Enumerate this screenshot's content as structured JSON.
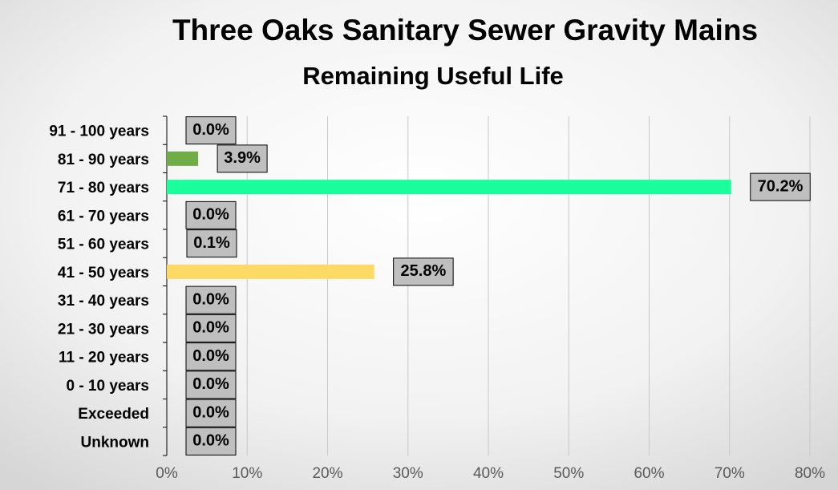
{
  "chart_data": {
    "type": "bar",
    "orientation": "horizontal",
    "title": "Three Oaks Sanitary Sewer Gravity Mains",
    "subtitle": "Remaining Useful Life",
    "categories": [
      "91 - 100 years",
      "81 - 90 years",
      "71 - 80 years",
      "61 - 70 years",
      "51 - 60 years",
      "41 - 50 years",
      "31 - 40 years",
      "21 - 30 years",
      "11 - 20 years",
      "0 - 10 years",
      "Exceeded",
      "Unknown"
    ],
    "values": [
      0.0,
      3.9,
      70.2,
      0.0,
      0.1,
      25.8,
      0.0,
      0.0,
      0.0,
      0.0,
      0.0,
      0.0
    ],
    "value_labels": [
      "0.0%",
      "3.9%",
      "70.2%",
      "0.0%",
      "0.1%",
      "25.8%",
      "0.0%",
      "0.0%",
      "0.0%",
      "0.0%",
      "0.0%",
      "0.0%"
    ],
    "colors": [
      null,
      "#70ad47",
      "#1aff9c",
      null,
      null,
      "#ffd966",
      null,
      null,
      null,
      null,
      null,
      null
    ],
    "xlim": [
      0,
      80
    ],
    "xticks": [
      {
        "value": 0,
        "label": "0%"
      },
      {
        "value": 10,
        "label": "10%"
      },
      {
        "value": 20,
        "label": "20%"
      },
      {
        "value": 30,
        "label": "30%"
      },
      {
        "value": 40,
        "label": "40%"
      },
      {
        "value": 50,
        "label": "50%"
      },
      {
        "value": 60,
        "label": "60%"
      },
      {
        "value": 70,
        "label": "70%"
      },
      {
        "value": 80,
        "label": "80%"
      }
    ],
    "grid": true
  }
}
